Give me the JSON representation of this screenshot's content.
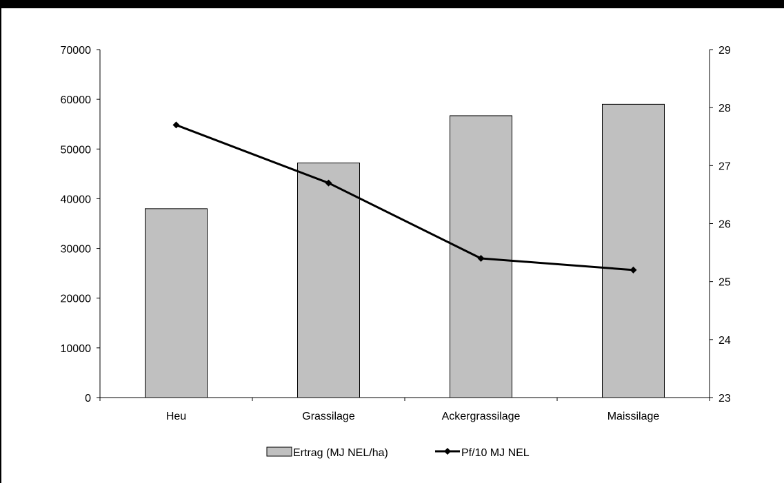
{
  "chart_data": {
    "type": "bar",
    "categories": [
      "Heu",
      "Grassilage",
      "Ackergrassilage",
      "Maissilage"
    ],
    "series": [
      {
        "name": "Ertrag (MJ NEL/ha)",
        "kind": "bar",
        "axis": "left",
        "values": [
          38000,
          47200,
          56700,
          59000
        ],
        "color": "#c0c0c0"
      },
      {
        "name": "Pf/10 MJ NEL",
        "kind": "line",
        "axis": "right",
        "values": [
          27.7,
          26.7,
          25.4,
          25.2
        ],
        "color": "#000000"
      }
    ],
    "y_left": {
      "ylim": [
        0,
        70000
      ],
      "ticks": [
        "0",
        "10000",
        "20000",
        "30000",
        "40000",
        "50000",
        "60000",
        "70000"
      ]
    },
    "y_right": {
      "ylim": [
        23,
        29
      ],
      "ticks": [
        "23",
        "24",
        "25",
        "26",
        "27",
        "28",
        "29"
      ]
    },
    "legend_position": "bottom",
    "grid": false
  }
}
